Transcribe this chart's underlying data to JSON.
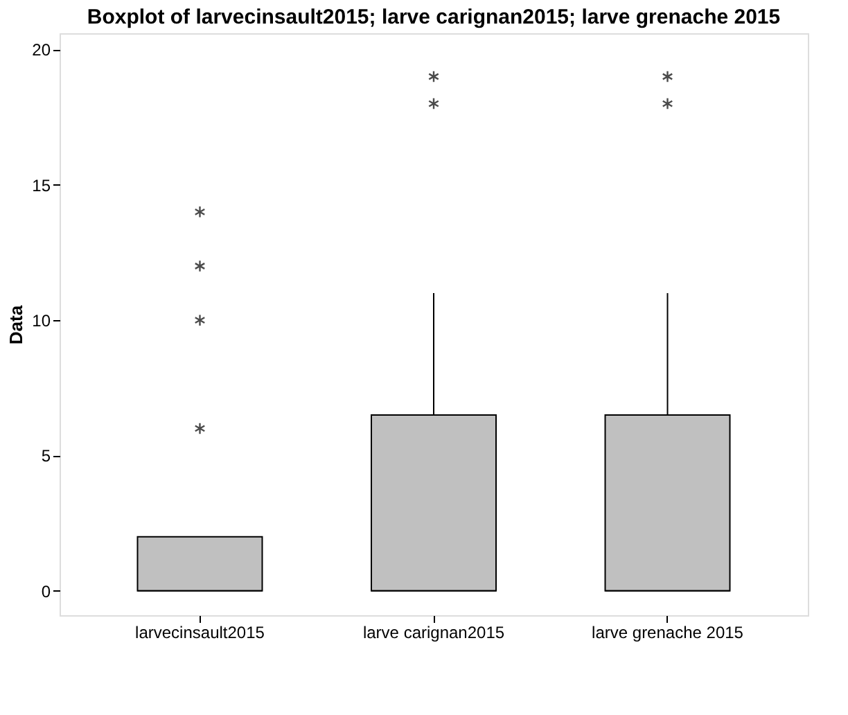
{
  "chart_data": {
    "type": "box",
    "title": "Boxplot of larvecinsault2015; larve carignan2015; larve grenache 2015",
    "ylabel": "Data",
    "categories": [
      "larvecinsault2015",
      "larve carignan2015",
      "larve grenache 2015"
    ],
    "boxes": [
      {
        "low": 0,
        "q1": 0,
        "median": 0,
        "q3": 2,
        "high": 2,
        "outliers": [
          6,
          10,
          12,
          14
        ]
      },
      {
        "low": 0,
        "q1": 0,
        "median": 0,
        "q3": 6.5,
        "high": 11,
        "outliers": [
          18,
          19
        ]
      },
      {
        "low": 0,
        "q1": 0,
        "median": 0,
        "q3": 6.5,
        "high": 11,
        "outliers": [
          18,
          19
        ]
      }
    ],
    "color": "#c0c0c0",
    "ylim": [
      -0.9,
      20.6
    ],
    "yticks": [
      0,
      5,
      10,
      15,
      20
    ],
    "grid": false
  }
}
